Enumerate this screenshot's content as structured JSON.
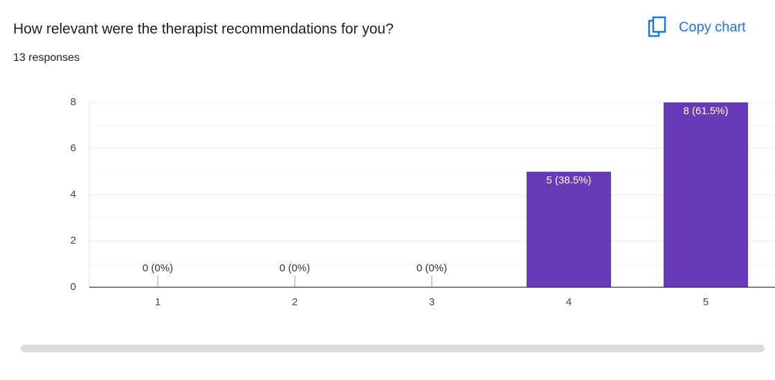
{
  "chart_data": {
    "type": "bar",
    "title": "How relevant were the therapist recommendations for you?",
    "subtitle": "13 responses",
    "button": "Copy chart",
    "categories": [
      "1",
      "2",
      "3",
      "4",
      "5"
    ],
    "values": [
      0,
      0,
      0,
      5,
      8
    ],
    "value_labels": [
      "0 (0%)",
      "0 (0%)",
      "0 (0%)",
      "5 (38.5%)",
      "8 (61.5%)"
    ],
    "color": "#673ab7",
    "ylim": [
      0,
      8
    ],
    "yticks": [
      0,
      2,
      4,
      6,
      8
    ],
    "minor_yticks": [
      1,
      3,
      5,
      7
    ],
    "grid": true
  }
}
